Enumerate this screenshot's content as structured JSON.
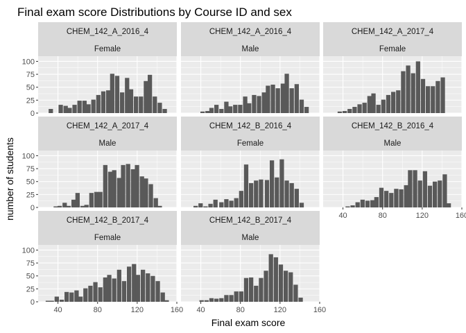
{
  "chart_data": {
    "type": "bar",
    "title": "Final exam score Distributions by Course ID and sex",
    "xlabel": "Final exam score",
    "ylabel": "number of students",
    "xlim": [
      20,
      160
    ],
    "ylim": [
      0,
      110
    ],
    "x_ticks": [
      40,
      80,
      120,
      160
    ],
    "y_ticks": [
      0,
      25,
      50,
      75,
      100
    ],
    "bin_width": 4.8,
    "grid": true,
    "colors": {
      "bar": "#595959",
      "panel_bg": "#ebebeb",
      "strip_bg": "#d9d9d9",
      "grid": "#ffffff"
    },
    "panels": [
      {
        "course": "CHEM_142_A_2016_4",
        "sex": "Female",
        "x": [
          33,
          43,
          48,
          52,
          57,
          62,
          67,
          71,
          76,
          81,
          86,
          91,
          95,
          100,
          105,
          110,
          114,
          119,
          124,
          129,
          133,
          138,
          143,
          148
        ],
        "y": [
          8,
          16,
          14,
          10,
          16,
          24,
          24,
          17,
          26,
          35,
          42,
          44,
          76,
          72,
          40,
          68,
          46,
          32,
          32,
          62,
          74,
          32,
          20,
          8
        ]
      },
      {
        "course": "CHEM_142_A_2016_4",
        "sex": "Male",
        "x": [
          42,
          47,
          51,
          56,
          61,
          66,
          70,
          75,
          80,
          85,
          89,
          94,
          99,
          104,
          108,
          113,
          118,
          123,
          127,
          132,
          137,
          142,
          147
        ],
        "y": [
          3,
          4,
          10,
          16,
          8,
          22,
          13,
          16,
          16,
          32,
          19,
          35,
          33,
          40,
          53,
          55,
          48,
          57,
          76,
          48,
          56,
          26,
          12
        ]
      },
      {
        "course": "CHEM_142_A_2017_4",
        "sex": "Female",
        "x": [
          37,
          42,
          47,
          52,
          57,
          62,
          67,
          71,
          76,
          81,
          86,
          91,
          96,
          101,
          106,
          111,
          116,
          121,
          126,
          131,
          136,
          141
        ],
        "y": [
          3,
          4,
          8,
          12,
          17,
          20,
          33,
          38,
          16,
          26,
          35,
          41,
          44,
          81,
          92,
          77,
          100,
          66,
          52,
          52,
          62,
          69
        ]
      },
      {
        "course": "CHEM_142_A_2017_4",
        "sex": "Male",
        "x": [
          38,
          42,
          47,
          51,
          56,
          60,
          65,
          69,
          74,
          79,
          83,
          88,
          93,
          97,
          102,
          106,
          111,
          116,
          120,
          125,
          129,
          134,
          139,
          143
        ],
        "y": [
          2,
          3,
          9,
          3,
          15,
          28,
          3,
          5,
          28,
          30,
          30,
          82,
          69,
          72,
          57,
          82,
          84,
          74,
          82,
          60,
          56,
          45,
          18,
          3
        ]
      },
      {
        "course": "CHEM_142_B_2016_4",
        "sex": "Female",
        "x": [
          35,
          40,
          45,
          50,
          55,
          61,
          66,
          71,
          76,
          81,
          86,
          91,
          96,
          101,
          107,
          112,
          117,
          122,
          127,
          132,
          137,
          142
        ],
        "y": [
          3,
          8,
          2,
          7,
          15,
          10,
          16,
          13,
          18,
          32,
          83,
          47,
          52,
          54,
          53,
          91,
          58,
          93,
          52,
          47,
          36,
          9
        ]
      },
      {
        "course": "CHEM_142_B_2016_4",
        "sex": "Male",
        "x": [
          45,
          50,
          55,
          60,
          65,
          70,
          74,
          79,
          84,
          89,
          94,
          99,
          104,
          108,
          113,
          118,
          123,
          128,
          133,
          138,
          143,
          147
        ],
        "y": [
          2,
          4,
          10,
          15,
          13,
          14,
          20,
          38,
          32,
          28,
          36,
          35,
          43,
          72,
          72,
          52,
          70,
          42,
          50,
          52,
          64,
          8
        ]
      },
      {
        "course": "CHEM_142_B_2017_4",
        "sex": "Female",
        "x": [
          30,
          34,
          39,
          44,
          49,
          54,
          59,
          63,
          68,
          73,
          78,
          83,
          88,
          92,
          97,
          102,
          107,
          112,
          117,
          121,
          126,
          131,
          136,
          141,
          146,
          150
        ],
        "y": [
          2,
          2,
          10,
          4,
          19,
          18,
          22,
          10,
          26,
          31,
          38,
          28,
          47,
          52,
          45,
          62,
          40,
          68,
          73,
          52,
          62,
          55,
          50,
          40,
          18,
          3
        ]
      },
      {
        "course": "CHEM_142_B_2017_4",
        "sex": "Male",
        "x": [
          41,
          46,
          51,
          56,
          61,
          66,
          71,
          76,
          81,
          86,
          91,
          96,
          101,
          106,
          111,
          116,
          121,
          126,
          131,
          136,
          141
        ],
        "y": [
          3,
          3,
          7,
          6,
          7,
          13,
          13,
          20,
          20,
          46,
          47,
          31,
          46,
          60,
          92,
          86,
          72,
          60,
          57,
          33,
          8
        ]
      }
    ]
  }
}
